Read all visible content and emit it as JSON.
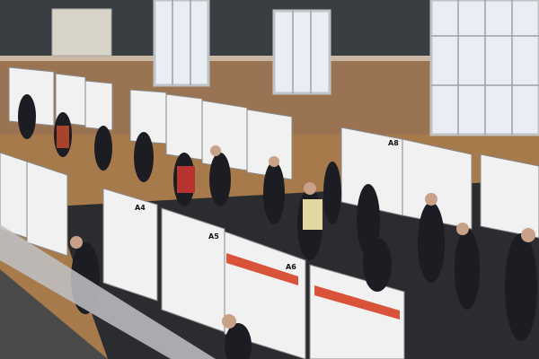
{
  "photo": {
    "poster_labels": [
      "A4",
      "A5",
      "A6",
      "A8"
    ]
  }
}
